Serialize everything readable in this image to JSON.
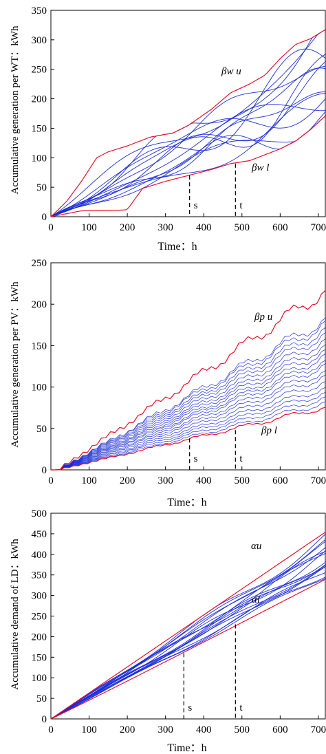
{
  "chart_data": [
    {
      "type": "line",
      "xlabel": "Time：h",
      "ylabel": "Accumulative generation per WT：kWh",
      "xlim": [
        0,
        720
      ],
      "ylim": [
        0,
        350
      ],
      "xticks": [
        0,
        100,
        200,
        300,
        400,
        500,
        600,
        700
      ],
      "yticks": [
        0,
        50,
        100,
        150,
        200,
        250,
        300,
        350
      ],
      "grid": false,
      "colors": {
        "bound": "#e8102a",
        "scenario": "#1a2ad6"
      },
      "upper_label": "βw u",
      "lower_label": "βw l",
      "markers": [
        {
          "label": "s",
          "x": 363,
          "y_top": 70
        },
        {
          "label": "t",
          "x": 483,
          "y_top": 90
        }
      ],
      "upper": {
        "x": [
          0,
          40,
          80,
          120,
          150,
          200,
          260,
          320,
          360,
          420,
          470,
          520,
          560,
          600,
          640,
          680,
          720
        ],
        "y": [
          0,
          25,
          60,
          100,
          110,
          120,
          135,
          142,
          155,
          182,
          210,
          225,
          240,
          268,
          292,
          302,
          318
        ]
      },
      "lower": {
        "x": [
          0,
          40,
          80,
          120,
          160,
          200,
          240,
          300,
          360,
          420,
          470,
          520,
          560,
          600,
          640,
          680,
          720
        ],
        "y": [
          0,
          5,
          10,
          10,
          10,
          12,
          48,
          60,
          70,
          80,
          90,
          95,
          105,
          115,
          128,
          148,
          172
        ]
      },
      "series_ends": [
        305,
        292,
        255,
        248,
        245,
        232,
        222,
        218,
        205,
        200,
        180,
        175,
        170
      ]
    },
    {
      "type": "line",
      "xlabel": "Time：h",
      "ylabel": "Accumulative generation per PV：kWh",
      "xlim": [
        0,
        720
      ],
      "ylim": [
        0,
        250
      ],
      "xticks": [
        0,
        100,
        200,
        300,
        400,
        500,
        600,
        700
      ],
      "yticks": [
        0,
        50,
        100,
        150,
        200,
        250
      ],
      "grid": false,
      "colors": {
        "bound": "#e8102a",
        "scenario": "#1a2ad6"
      },
      "upper_label": "βp u",
      "lower_label": "βp l",
      "markers": [
        {
          "label": "s",
          "x": 363,
          "y_top": 38
        },
        {
          "label": "t",
          "x": 483,
          "y_top": 48
        }
      ],
      "upper_final": 215,
      "lower_final": 75,
      "series_ends": [
        180,
        175,
        168,
        162,
        155,
        148,
        142,
        136,
        130,
        125,
        118,
        112,
        105,
        98,
        92,
        86,
        80
      ]
    },
    {
      "type": "line",
      "xlabel": "Time：h",
      "ylabel": "Accumulative demand of LD：kWh",
      "xlim": [
        0,
        720
      ],
      "ylim": [
        0,
        500
      ],
      "xticks": [
        0,
        100,
        200,
        300,
        400,
        500,
        600,
        700
      ],
      "yticks": [
        0,
        50,
        100,
        150,
        200,
        250,
        300,
        350,
        400,
        450,
        500
      ],
      "grid": false,
      "colors": {
        "bound": "#e8102a",
        "scenario": "#1a2ad6"
      },
      "upper_label": "αu",
      "lower_label": "αl",
      "markers": [
        {
          "label": "s",
          "x": 348,
          "y_top": 160
        },
        {
          "label": "t",
          "x": 483,
          "y_top": 230
        }
      ],
      "upper_final": 455,
      "lower_final": 340,
      "series_ends": [
        440,
        432,
        425,
        418,
        410,
        404,
        398,
        392,
        386,
        380,
        374,
        368,
        362,
        356,
        350
      ]
    }
  ]
}
